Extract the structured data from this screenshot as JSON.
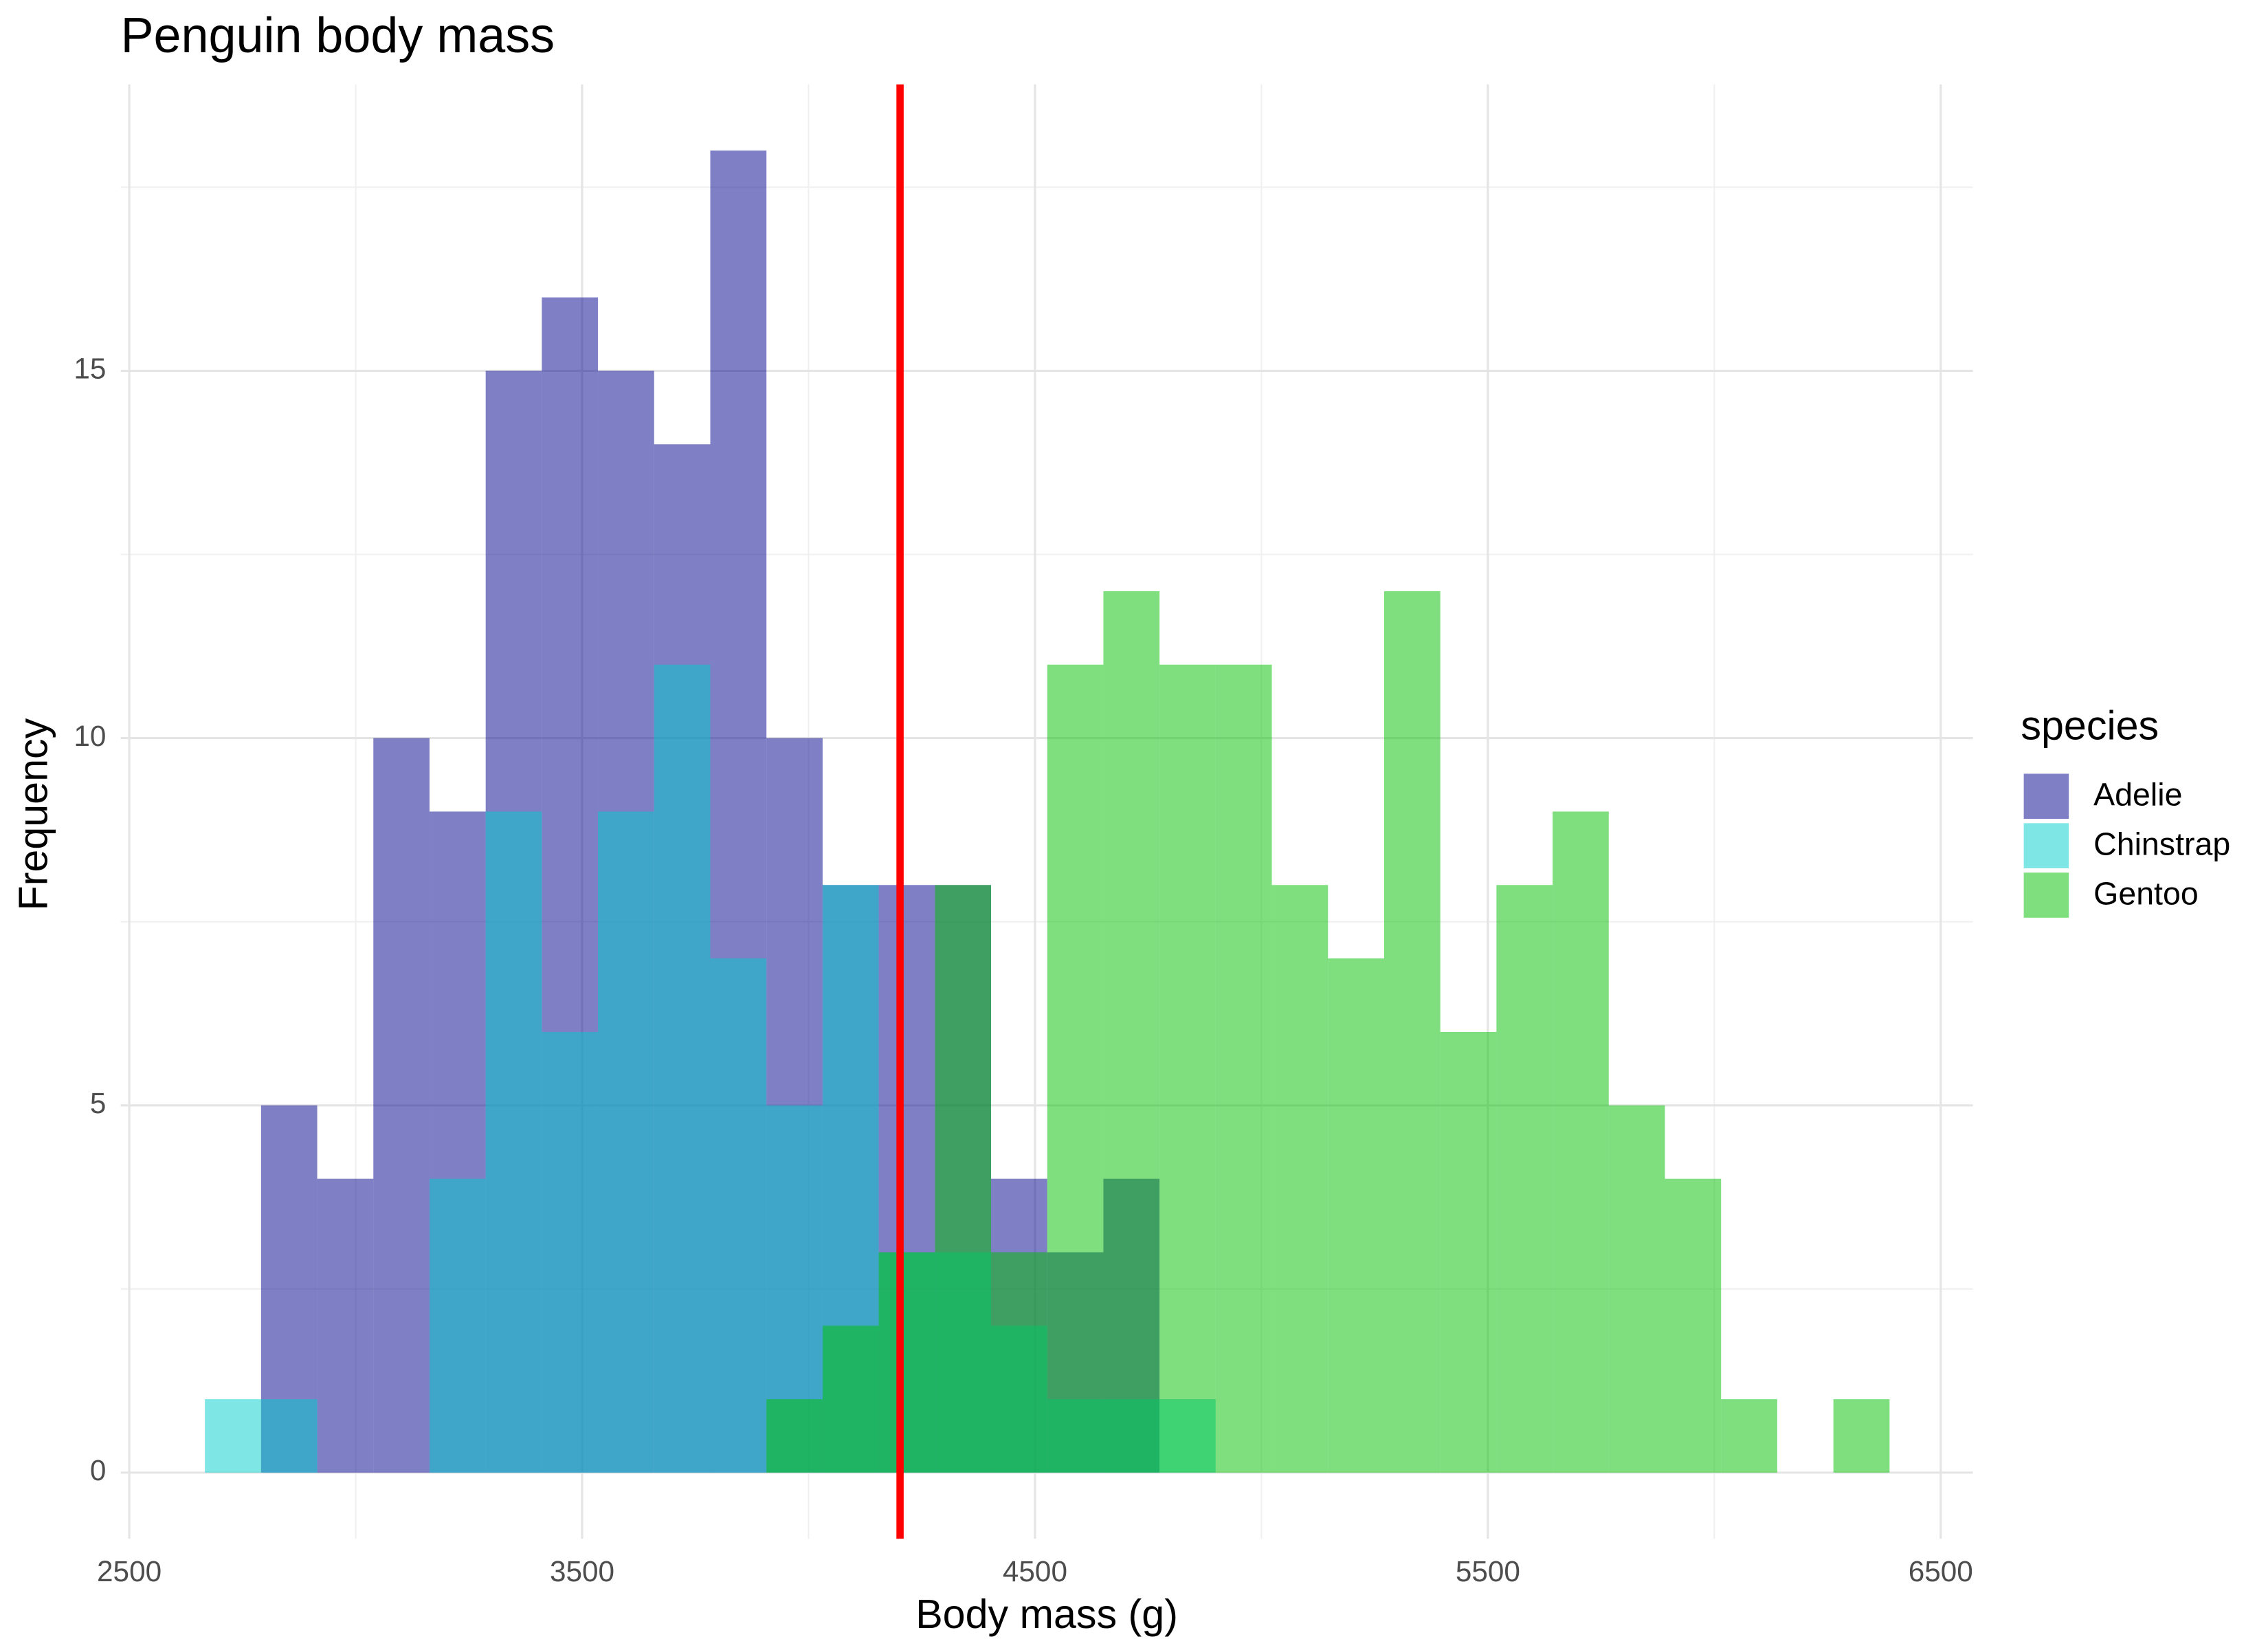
{
  "chart_data": {
    "type": "histogram",
    "title": "Penguin body mass",
    "x_label": "Body mass (g)",
    "y_label": "Frequency",
    "bins": [
      2667,
      2791,
      2915,
      3039,
      3163,
      3287,
      3411,
      3535,
      3659,
      3783,
      3907,
      4031,
      4155,
      4279,
      4403,
      4527,
      4651,
      4775,
      4899,
      5023,
      5147,
      5271,
      5395,
      5519,
      5643,
      5767,
      5891,
      6015,
      6139,
      6263,
      6387
    ],
    "series": [
      {
        "name": "Adelie",
        "color": "#00008b",
        "values": [
          0,
          5,
          4,
          10,
          9,
          15,
          16,
          15,
          14,
          18,
          10,
          8,
          8,
          8,
          4,
          3,
          4,
          0,
          0,
          0,
          0,
          0,
          0,
          0,
          0,
          0,
          0,
          0,
          0,
          0
        ]
      },
      {
        "name": "Chinstrap",
        "color": "#00cdcd",
        "values": [
          1,
          1,
          0,
          0,
          4,
          9,
          6,
          9,
          11,
          7,
          5,
          8,
          3,
          3,
          2,
          1,
          1,
          1,
          0,
          0,
          0,
          0,
          0,
          0,
          0,
          0,
          0,
          0,
          0,
          0
        ]
      },
      {
        "name": "Gentoo",
        "color": "#00c000",
        "values": [
          0,
          0,
          0,
          0,
          0,
          0,
          0,
          0,
          0,
          0,
          1,
          2,
          3,
          8,
          3,
          11,
          12,
          11,
          11,
          8,
          7,
          12,
          6,
          8,
          9,
          5,
          4,
          1,
          0,
          1
        ]
      }
    ],
    "alpha": 0.5,
    "vline": {
      "x": 4202,
      "color": "#ff0000"
    },
    "legend_title": "species",
    "xlim": [
      2481,
      6571
    ],
    "xticks": [
      2500,
      3500,
      4500,
      5500,
      6500
    ],
    "ylim": [
      -0.9,
      18.9
    ],
    "yticks": [
      0,
      5,
      10,
      15
    ],
    "grid": true
  }
}
